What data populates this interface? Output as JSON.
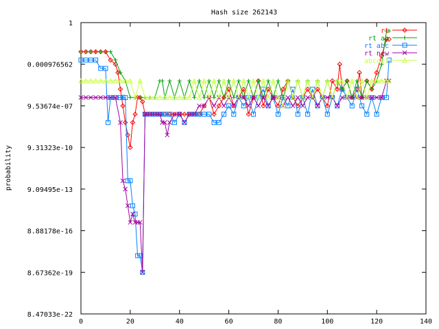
{
  "chart_data": {
    "type": "line",
    "title": "Hash size 262143",
    "xlabel": "",
    "ylabel": "probability",
    "xlim": [
      0,
      140
    ],
    "x_ticks": [
      0,
      20,
      40,
      60,
      80,
      100,
      120,
      140
    ],
    "ylim_log2": [
      -70,
      0
    ],
    "y_ticks": [
      {
        "label": "1",
        "log2": 0
      },
      {
        "label": "0.000976562",
        "log2": -10
      },
      {
        "label": "9.53674e-07",
        "log2": -20
      },
      {
        "label": "9.31323e-10",
        "log2": -30
      },
      {
        "label": "9.09495e-13",
        "log2": -40
      },
      {
        "label": "8.88178e-16",
        "log2": -50
      },
      {
        "label": "8.67362e-19",
        "log2": -60
      },
      {
        "label": "8.47033e-22",
        "log2": -70
      }
    ],
    "y_scale": "log2",
    "legend_position": "top-right",
    "series": [
      {
        "name": "rt",
        "color": "#ff0000",
        "marker": "diamond",
        "x": [
          0,
          2,
          4,
          6,
          8,
          10,
          12,
          14,
          15,
          16,
          17,
          18,
          19,
          20,
          21,
          22,
          23,
          24,
          25,
          26,
          28,
          30,
          32,
          34,
          36,
          38,
          40,
          42,
          44,
          46,
          48,
          50,
          52,
          54,
          56,
          58,
          60,
          62,
          64,
          66,
          68,
          70,
          72,
          74,
          76,
          78,
          80,
          82,
          84,
          86,
          88,
          90,
          92,
          94,
          96,
          98,
          100,
          102,
          104,
          105,
          106,
          108,
          110,
          112,
          113,
          114,
          116,
          118,
          120,
          122,
          124,
          125
        ],
        "y": [
          -7,
          -7,
          -7,
          -7,
          -7,
          -7,
          -9,
          -10,
          -12,
          -16,
          -20,
          -24,
          -27,
          -30,
          -24,
          -22,
          -18,
          -18,
          -19,
          -22,
          -22,
          -22,
          -22,
          -22,
          -22,
          -22,
          -22,
          -22,
          -22,
          -22,
          -22,
          -20,
          -18,
          -22,
          -20,
          -18,
          -16,
          -20,
          -18,
          -16,
          -22,
          -18,
          -14,
          -20,
          -16,
          -18,
          -20,
          -16,
          -14,
          -18,
          -20,
          -18,
          -16,
          -18,
          -16,
          -18,
          -20,
          -14,
          -16,
          -10,
          -16,
          -14,
          -18,
          -16,
          -12,
          -18,
          -14,
          -16,
          -12,
          -8,
          -4,
          -4
        ]
      },
      {
        "name": "rt ab",
        "color": "#00a000",
        "marker": "plus",
        "x": [
          0,
          2,
          4,
          6,
          8,
          10,
          12,
          14,
          16,
          18,
          20,
          22,
          24,
          26,
          28,
          30,
          32,
          33,
          34,
          36,
          38,
          40,
          42,
          44,
          46,
          48,
          50,
          52,
          54,
          56,
          58,
          60,
          62,
          64,
          66,
          68,
          70,
          72,
          74,
          76,
          78,
          80,
          82,
          84,
          86,
          88,
          90,
          92,
          94,
          96,
          98,
          100,
          102,
          104,
          106,
          108,
          110,
          112,
          114,
          116,
          118,
          120,
          122,
          124,
          125
        ],
        "y": [
          -7,
          -7,
          -7,
          -7,
          -7,
          -7,
          -7,
          -9,
          -12,
          -14,
          -18,
          -18,
          -18,
          -18,
          -18,
          -18,
          -14,
          -14,
          -18,
          -14,
          -18,
          -14,
          -18,
          -14,
          -18,
          -14,
          -18,
          -14,
          -18,
          -14,
          -18,
          -14,
          -18,
          -14,
          -18,
          -14,
          -18,
          -14,
          -18,
          -14,
          -18,
          -14,
          -18,
          -14,
          -18,
          -14,
          -18,
          -14,
          -18,
          -14,
          -18,
          -14,
          -18,
          -14,
          -16,
          -14,
          -18,
          -14,
          -18,
          -14,
          -16,
          -14,
          -10,
          -2,
          -2
        ]
      },
      {
        "name": "rt abc",
        "color": "#0080ff",
        "marker": "square",
        "x": [
          0,
          2,
          4,
          6,
          8,
          10,
          11,
          12,
          14,
          16,
          17,
          18,
          19,
          20,
          21,
          22,
          23,
          24,
          25,
          26,
          28,
          30,
          32,
          34,
          36,
          38,
          40,
          42,
          44,
          46,
          48,
          50,
          52,
          54,
          56,
          58,
          60,
          62,
          64,
          66,
          68,
          70,
          72,
          74,
          76,
          78,
          80,
          82,
          84,
          86,
          88,
          90,
          92,
          94,
          96,
          98,
          100,
          102,
          104,
          106,
          108,
          110,
          112,
          114,
          116,
          118,
          120,
          122,
          124,
          125
        ],
        "y": [
          -9,
          -9,
          -9,
          -9,
          -11,
          -11,
          -24,
          -18,
          -18,
          -18,
          -18,
          -18,
          -38,
          -38,
          -44,
          -46,
          -56,
          -56,
          -60,
          -22,
          -22,
          -22,
          -22,
          -22,
          -22,
          -24,
          -22,
          -24,
          -22,
          -22,
          -22,
          -22,
          -22,
          -24,
          -24,
          -22,
          -20,
          -22,
          -18,
          -20,
          -18,
          -22,
          -18,
          -16,
          -20,
          -18,
          -22,
          -18,
          -20,
          -16,
          -22,
          -18,
          -22,
          -16,
          -20,
          -18,
          -22,
          -18,
          -20,
          -16,
          -18,
          -20,
          -16,
          -20,
          -22,
          -18,
          -22,
          -18,
          -18,
          -9
        ]
      },
      {
        "name": "rt new",
        "color": "#a000a0",
        "marker": "cross",
        "x": [
          0,
          2,
          4,
          6,
          8,
          10,
          12,
          14,
          16,
          17,
          18,
          19,
          20,
          21,
          22,
          23,
          24,
          25,
          26,
          28,
          30,
          32,
          33,
          34,
          35,
          36,
          38,
          40,
          42,
          44,
          46,
          48,
          50,
          52,
          54,
          56,
          58,
          60,
          62,
          64,
          66,
          68,
          70,
          72,
          74,
          76,
          78,
          80,
          82,
          84,
          86,
          88,
          90,
          92,
          94,
          96,
          98,
          100,
          102,
          104,
          106,
          108,
          110,
          112,
          114,
          116,
          118,
          120,
          122,
          124,
          125
        ],
        "y": [
          -18,
          -18,
          -18,
          -18,
          -18,
          -18,
          -18,
          -18,
          -24,
          -38,
          -40,
          -44,
          -48,
          -46,
          -48,
          -48,
          -48,
          -60,
          -22,
          -22,
          -22,
          -22,
          -24,
          -24,
          -27,
          -24,
          -22,
          -22,
          -24,
          -22,
          -22,
          -20,
          -20,
          -18,
          -20,
          -18,
          -20,
          -18,
          -20,
          -18,
          -18,
          -20,
          -18,
          -20,
          -18,
          -20,
          -18,
          -18,
          -20,
          -18,
          -20,
          -18,
          -20,
          -18,
          -18,
          -20,
          -18,
          -18,
          -18,
          -20,
          -18,
          -18,
          -18,
          -18,
          -18,
          -18,
          -18,
          -18,
          -18,
          -14,
          -14
        ]
      },
      {
        "name": "abcdef",
        "color": "#c8ff40",
        "marker": "triangle",
        "x": [
          0,
          2,
          4,
          6,
          8,
          10,
          12,
          14,
          16,
          18,
          20,
          22,
          24,
          26,
          28,
          30,
          32,
          34,
          36,
          38,
          40,
          42,
          44,
          46,
          48,
          50,
          52,
          54,
          56,
          58,
          60,
          62,
          64,
          66,
          68,
          70,
          72,
          74,
          76,
          78,
          80,
          82,
          84,
          86,
          88,
          90,
          92,
          94,
          96,
          98,
          100,
          102,
          104,
          106,
          108,
          110,
          112,
          114,
          116,
          118,
          120,
          122,
          124,
          125
        ],
        "y": [
          -14,
          -14,
          -14,
          -14,
          -14,
          -14,
          -14,
          -14,
          -14,
          -14,
          -14,
          -18,
          -14,
          -18,
          -18,
          -18,
          -18,
          -18,
          -18,
          -18,
          -18,
          -18,
          -18,
          -14,
          -18,
          -14,
          -18,
          -14,
          -18,
          -14,
          -18,
          -14,
          -18,
          -14,
          -18,
          -14,
          -18,
          -14,
          -18,
          -14,
          -18,
          -20,
          -14,
          -18,
          -14,
          -18,
          -14,
          -18,
          -14,
          -18,
          -14,
          -18,
          -14,
          -14,
          -18,
          -14,
          -18,
          -14,
          -18,
          -14,
          -14,
          -14,
          -14,
          -14
        ]
      }
    ]
  }
}
